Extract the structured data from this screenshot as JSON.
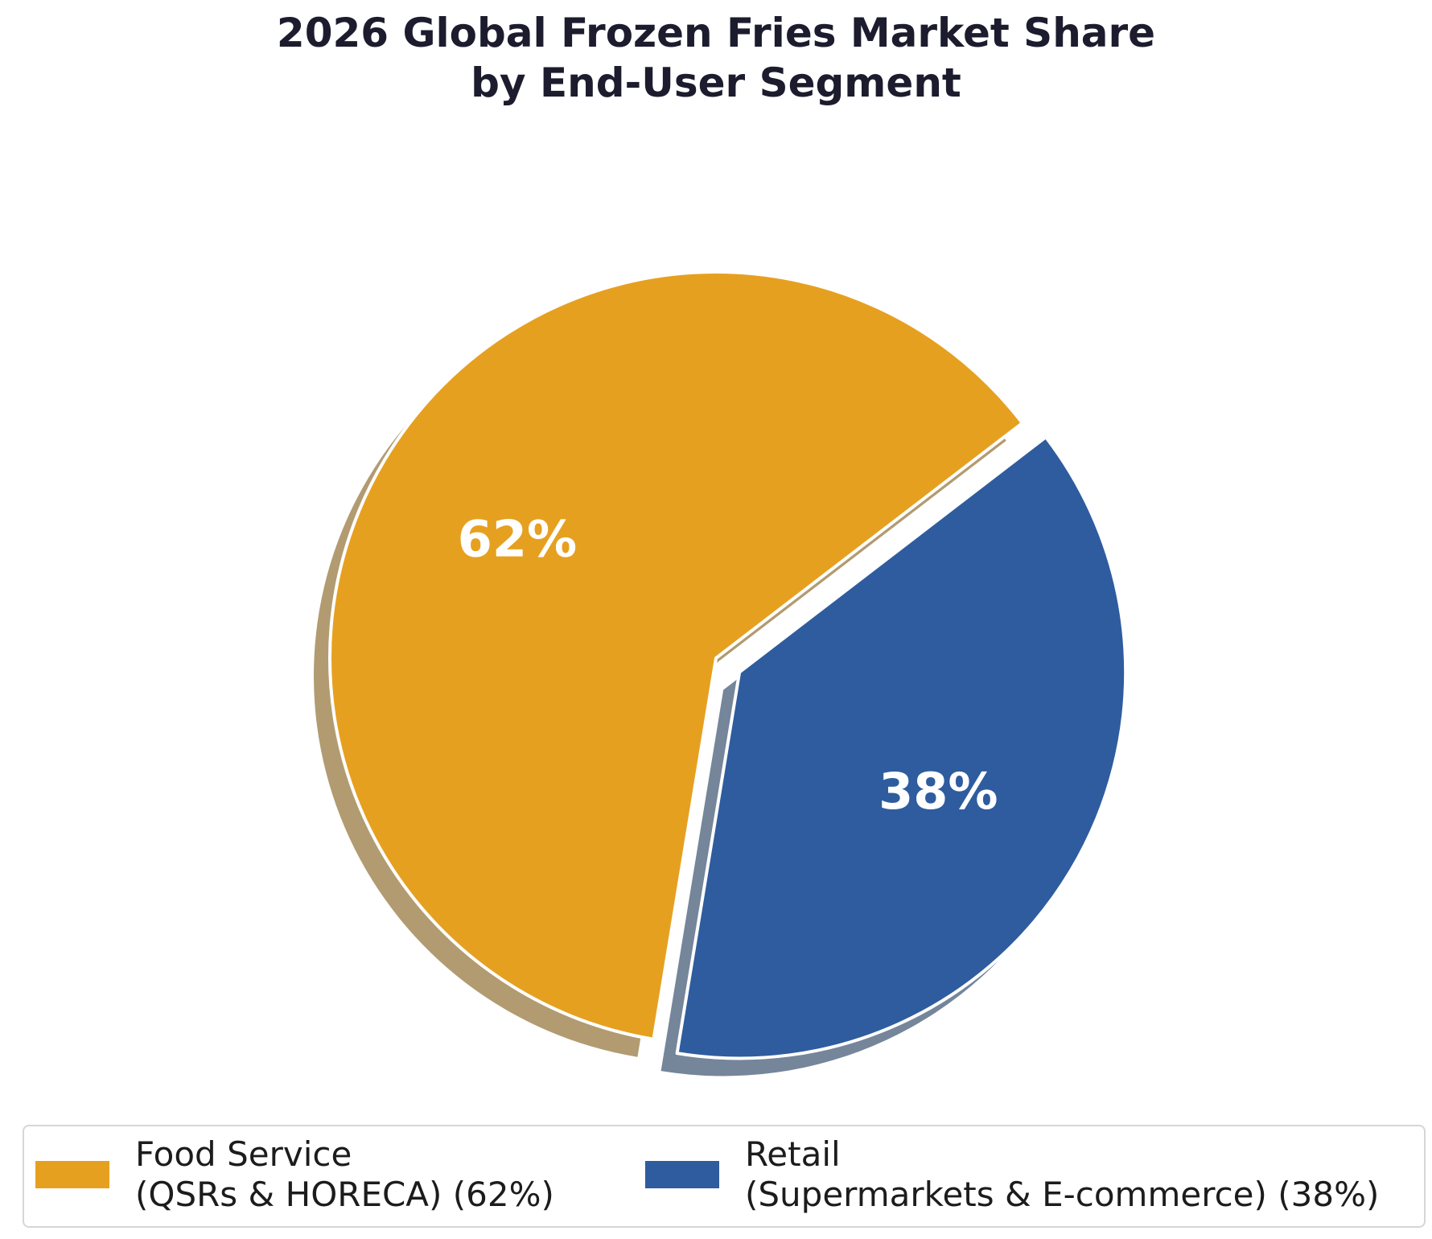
{
  "chart_data": {
    "type": "pie",
    "title": [
      "2026 Global Frozen Fries Market Share",
      "by End-User Segment"
    ],
    "slices": [
      {
        "name": "Food Service",
        "legend_lines": [
          "Food Service",
          "(QSRs & HORECA) (62%)"
        ],
        "value": 62,
        "label": "62%",
        "color": "#E6A020",
        "exploded": false
      },
      {
        "name": "Retail",
        "legend_lines": [
          "Retail",
          "(Supermarkets & E-commerce) (38%)"
        ],
        "value": 38,
        "label": "38%",
        "color": "#2E5C9E",
        "exploded": true
      }
    ],
    "shadow": true,
    "legend_position": "bottom"
  }
}
